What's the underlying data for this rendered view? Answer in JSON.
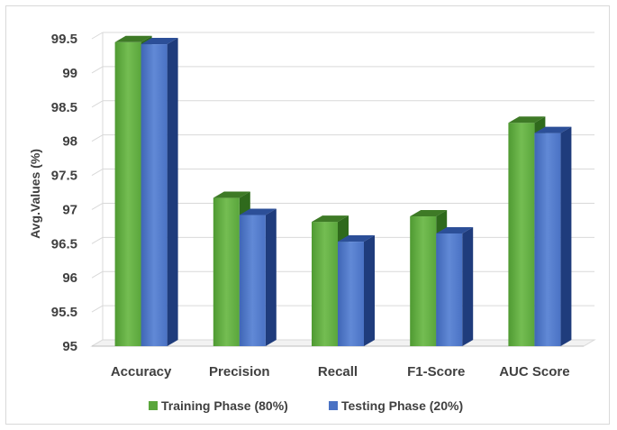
{
  "chart_data": {
    "type": "bar",
    "style": "3d-clustered-column",
    "categories": [
      "Accuracy",
      "Precision",
      "Recall",
      "F1-Score",
      "AUC Score"
    ],
    "series": [
      {
        "name": "Training Phase (80%)",
        "color": "#5aa63c",
        "values": [
          99.45,
          97.17,
          96.82,
          96.9,
          98.27
        ]
      },
      {
        "name": "Testing Phase (20%)",
        "color": "#4a72c4",
        "values": [
          99.42,
          96.92,
          96.53,
          96.65,
          98.12
        ]
      }
    ],
    "ylabel": "Avg.Values (%)",
    "ylim": [
      95,
      99.5
    ],
    "yticks": [
      "95",
      "95.5",
      "96",
      "96.5",
      "97",
      "97.5",
      "98",
      "98.5",
      "99",
      "99.5"
    ],
    "grid": true,
    "legend": "bottom"
  }
}
